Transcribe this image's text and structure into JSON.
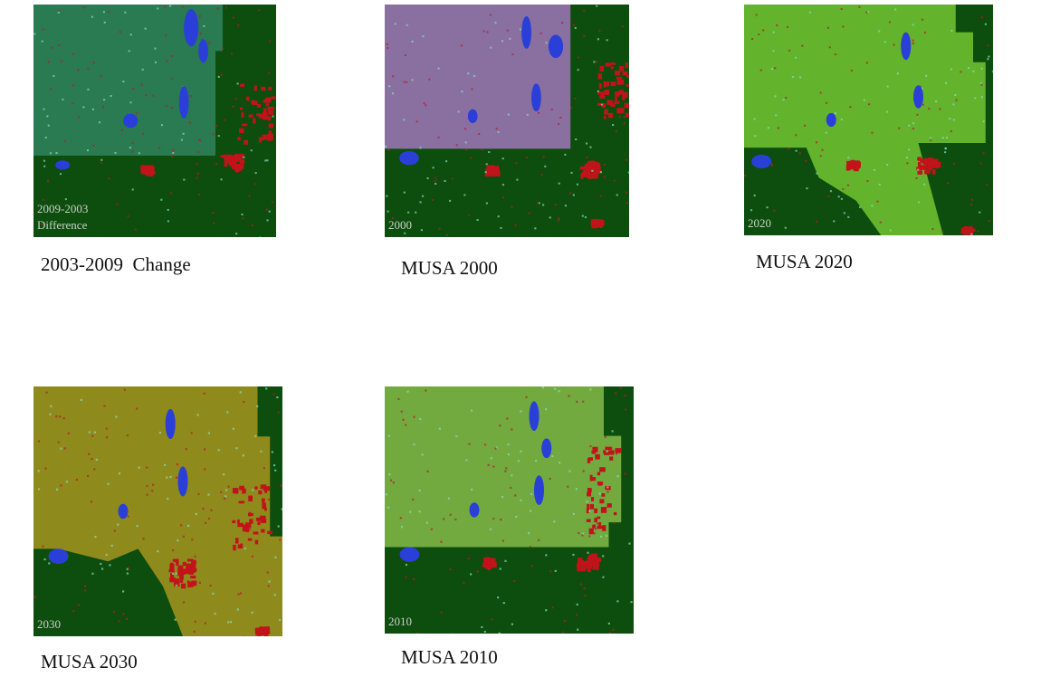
{
  "panels": [
    {
      "caption": "2003-2009  Change",
      "map_label": [
        "2009-2003",
        "Difference"
      ]
    },
    {
      "caption": "MUSA 2000",
      "map_label": [
        "2000"
      ]
    },
    {
      "caption": "MUSA 2020",
      "map_label": [
        "2020"
      ]
    },
    {
      "caption": "MUSA 2030",
      "map_label": [
        "2030"
      ]
    },
    {
      "caption": "MUSA 2010",
      "map_label": [
        "2010"
      ]
    }
  ]
}
